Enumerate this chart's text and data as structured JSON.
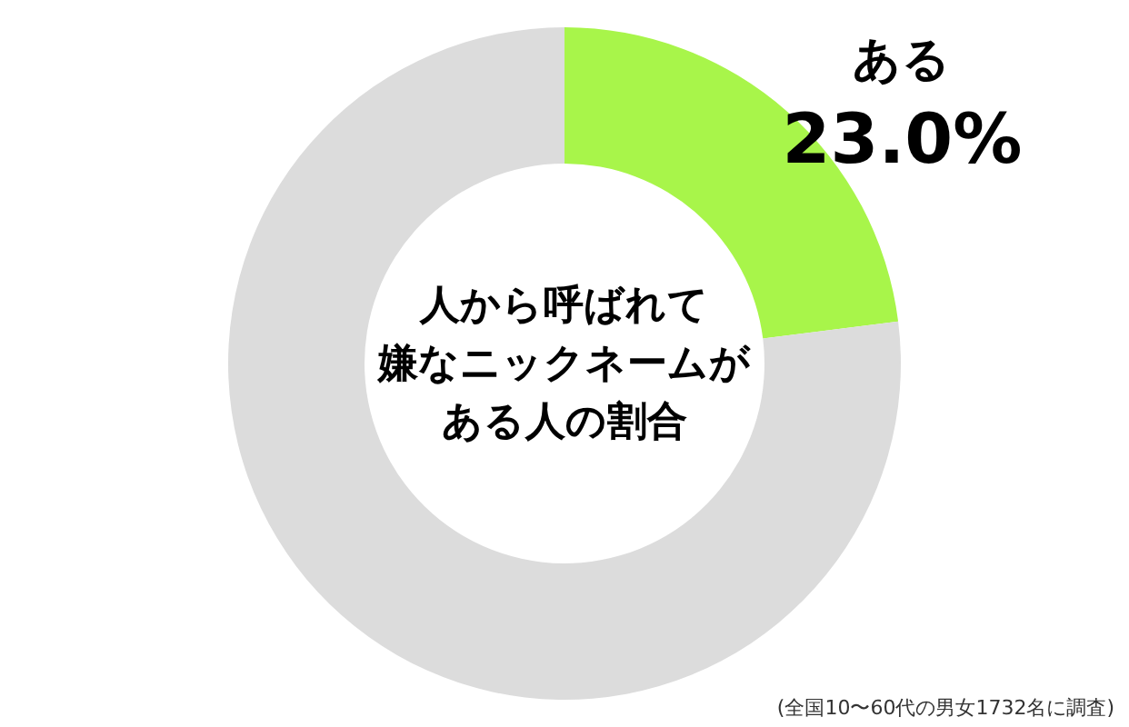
{
  "chart_data": {
    "type": "donut",
    "title": "人から呼ばれて嫌なニックネームがある人の割合",
    "categories": [
      "ある",
      null
    ],
    "values": [
      23.0,
      77.0
    ],
    "colors": [
      "#a8f54a",
      "#dcdcdc"
    ],
    "value_labels": [
      "23.0%",
      null
    ],
    "legend": false,
    "annotations": [
      "(全国10〜60代の男女1732名に調査)"
    ]
  }
}
